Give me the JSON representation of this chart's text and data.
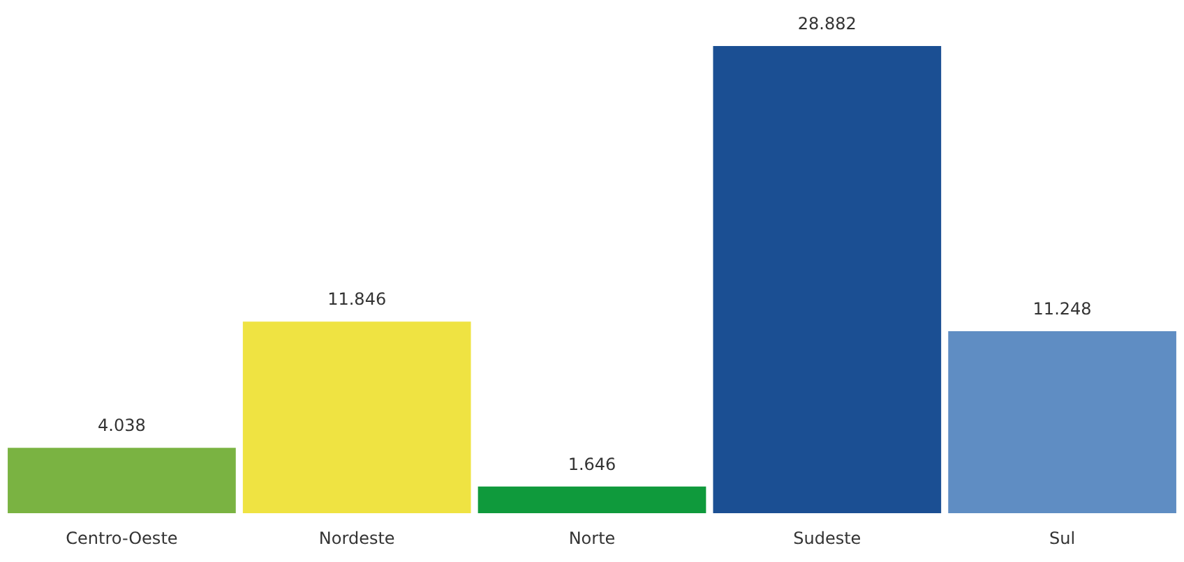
{
  "chart_data": {
    "type": "bar",
    "categories": [
      "Centro-Oeste",
      "Nordeste",
      "Norte",
      "Sudeste",
      "Sul"
    ],
    "values": [
      4038,
      11846,
      1646,
      28882,
      11248
    ],
    "value_labels": [
      "4.038",
      "11.846",
      "1.646",
      "28.882",
      "11.248"
    ],
    "colors": [
      "#7ab342",
      "#efe342",
      "#0f9a3c",
      "#1b4f93",
      "#5f8dc3"
    ]
  }
}
